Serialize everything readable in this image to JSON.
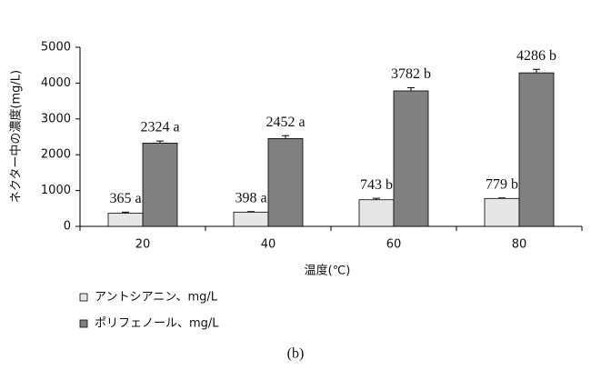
{
  "chart_data": {
    "type": "bar",
    "caption": "(b)",
    "y_label": "ネクター中の濃度(mg/L)",
    "x_label": "温度(℃)",
    "categories": [
      20,
      40,
      60,
      80
    ],
    "series": [
      {
        "name": "アントシアニン、mg/L",
        "color": "#e6e6e6",
        "values": [
          365,
          398,
          743,
          779
        ],
        "errors": [
          30,
          15,
          40,
          15
        ],
        "value_labels": [
          "365 a",
          "398 a",
          "743 b",
          "779 b"
        ]
      },
      {
        "name": "ポリフェノール、mg/L",
        "color": "#808080",
        "values": [
          2324,
          2452,
          3782,
          4286
        ],
        "errors": [
          60,
          80,
          90,
          100
        ],
        "value_labels": [
          "2324 a",
          "2452 a",
          "3782 b",
          "4286 b"
        ]
      }
    ],
    "ylim": [
      0,
      5000
    ],
    "yticks": [
      0,
      1000,
      2000,
      3000,
      4000,
      5000
    ],
    "grid": false
  }
}
